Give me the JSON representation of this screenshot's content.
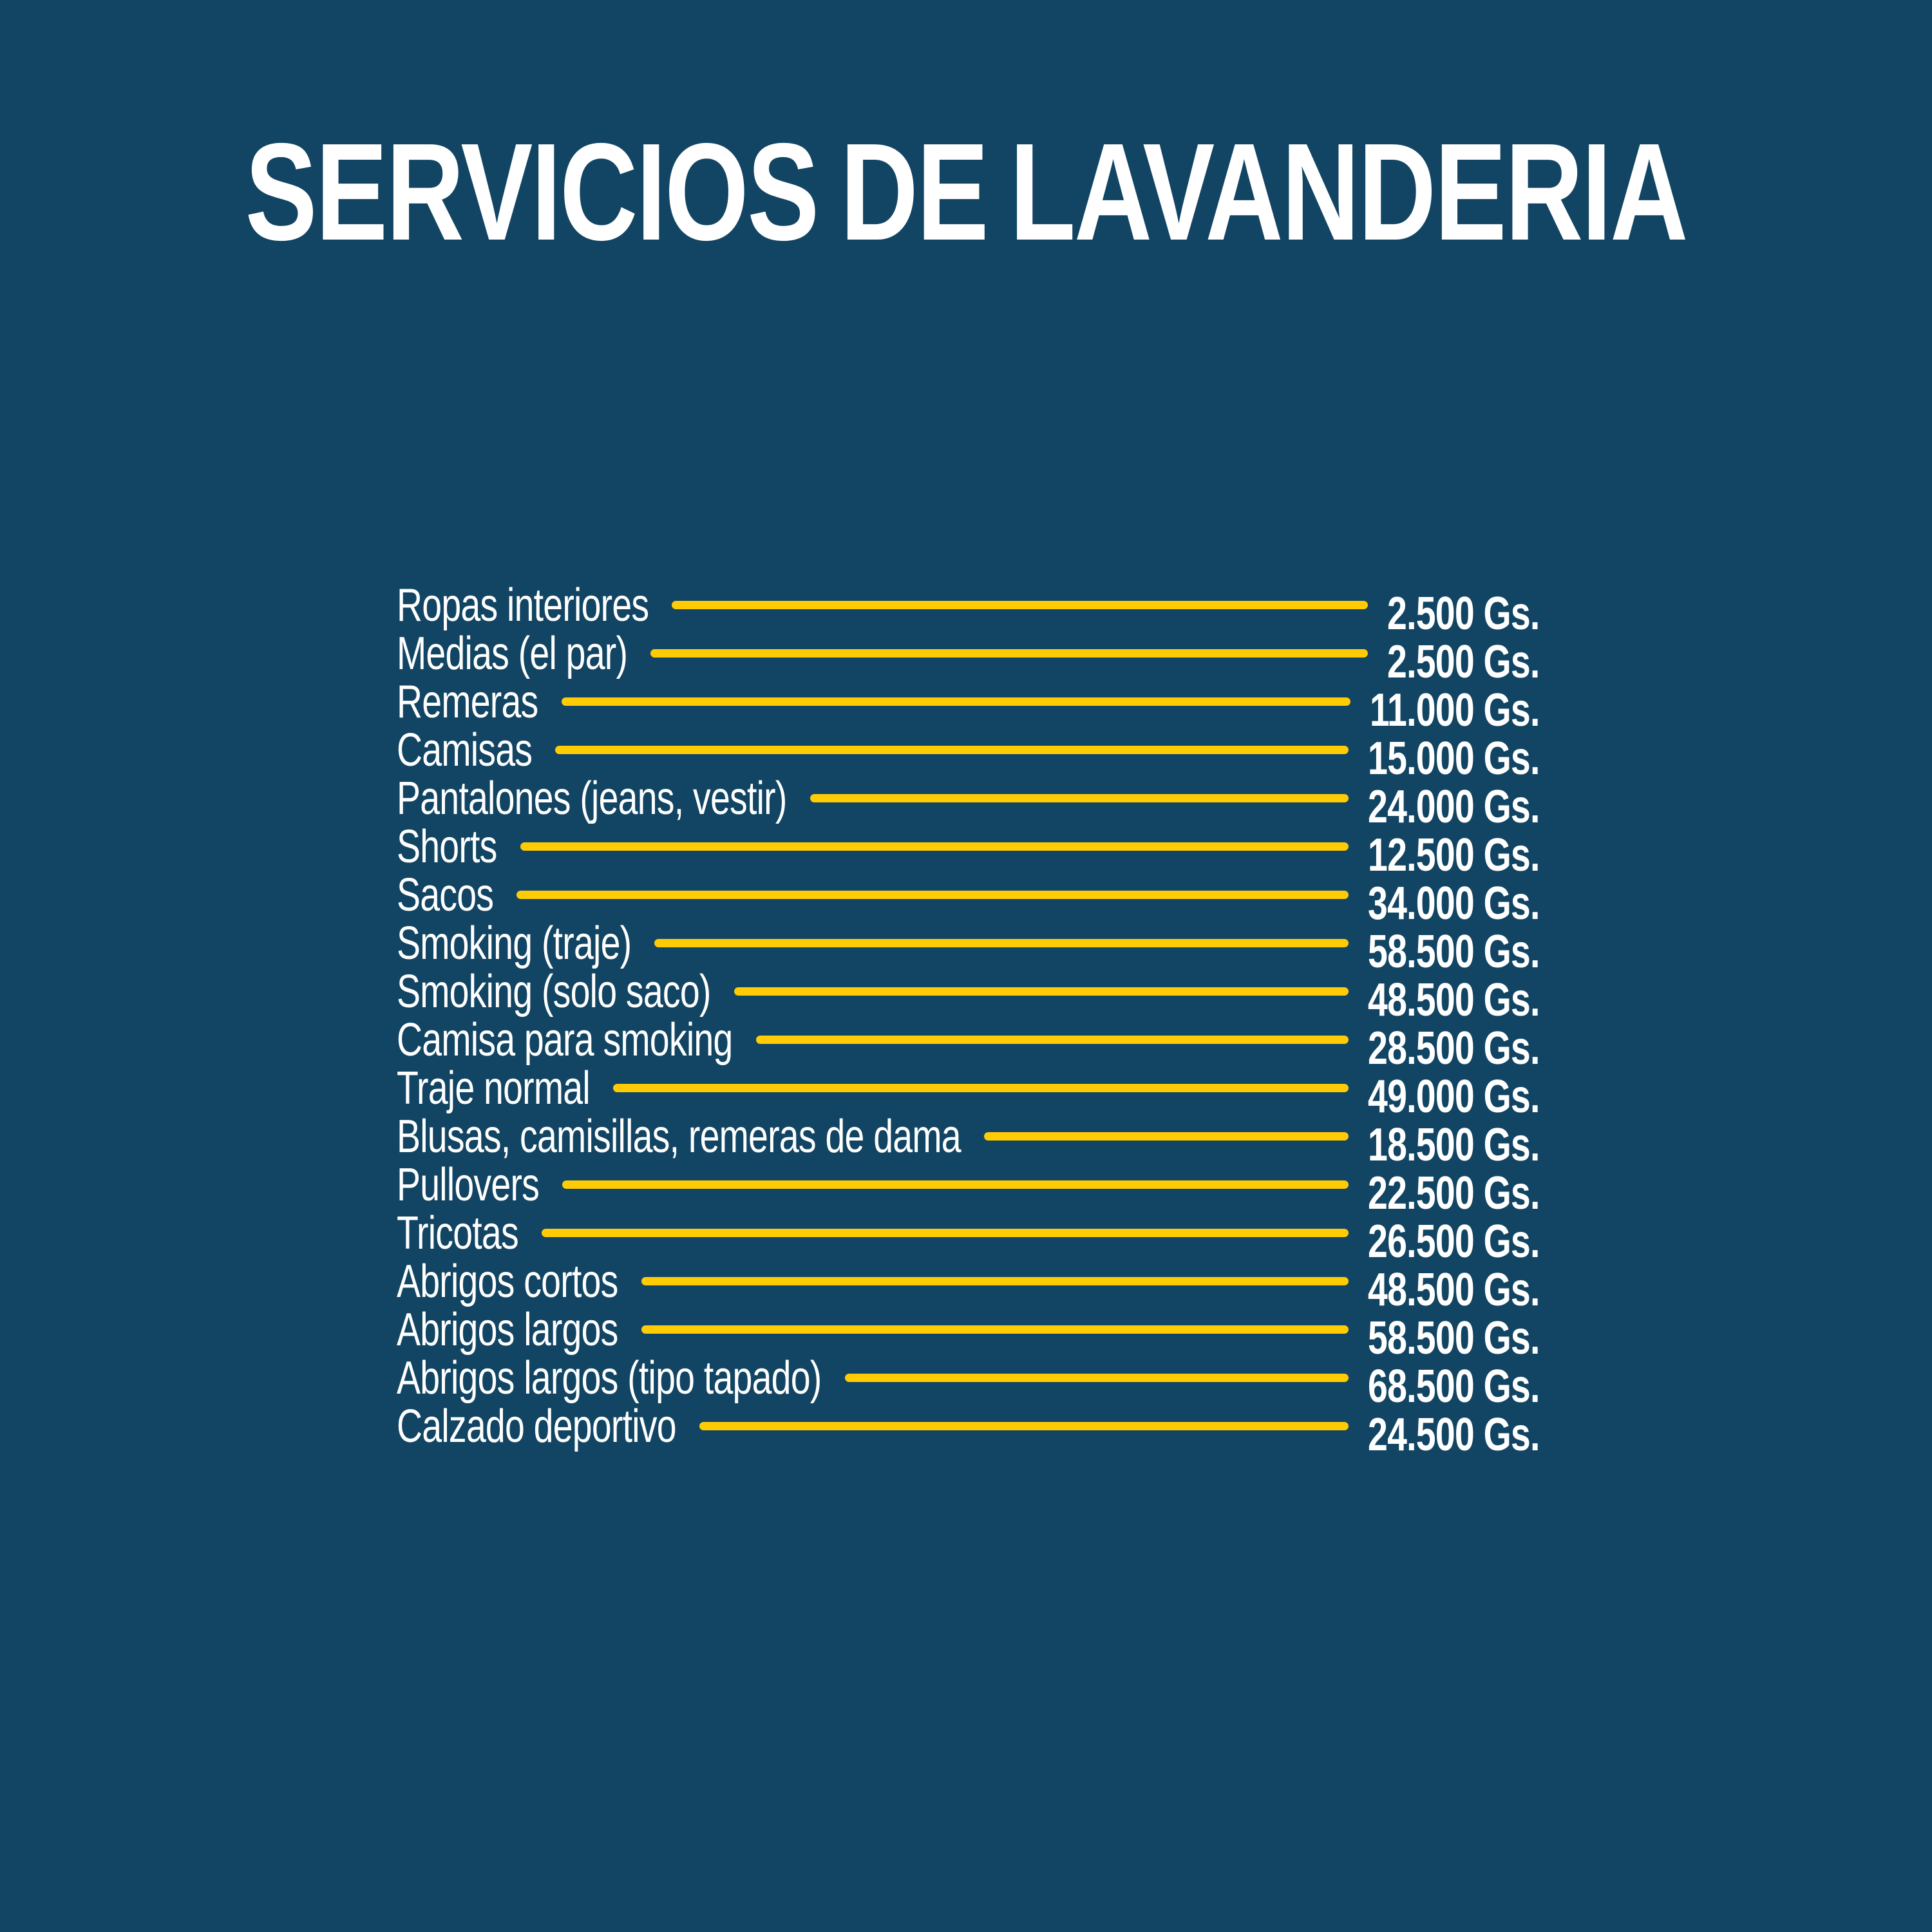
{
  "title": "SERVICIOS DE LAVANDERIA",
  "currency_suffix": "Gs.",
  "colors": {
    "background": "#124563",
    "accent_yellow": "#FFCB05",
    "text": "#FFFFFF"
  },
  "items": [
    {
      "label": "Ropas interiores",
      "price": "2.500 Gs."
    },
    {
      "label": "Medias (el par)",
      "price": "2.500 Gs."
    },
    {
      "label": "Remeras",
      "price": "11.000 Gs."
    },
    {
      "label": "Camisas",
      "price": "15.000 Gs."
    },
    {
      "label": "Pantalones (jeans, vestir)",
      "price": "24.000 Gs."
    },
    {
      "label": "Shorts",
      "price": "12.500 Gs."
    },
    {
      "label": "Sacos",
      "price": "34.000 Gs."
    },
    {
      "label": "Smoking (traje)",
      "price": "58.500 Gs."
    },
    {
      "label": "Smoking (solo saco)",
      "price": "48.500 Gs."
    },
    {
      "label": "Camisa para smoking",
      "price": "28.500 Gs."
    },
    {
      "label": "Traje normal",
      "price": "49.000 Gs."
    },
    {
      "label": "Blusas, camisillas, remeras de dama",
      "price": "18.500 Gs."
    },
    {
      "label": "Pullovers",
      "price": "22.500 Gs."
    },
    {
      "label": "Tricotas",
      "price": "26.500 Gs."
    },
    {
      "label": "Abrigos cortos",
      "price": "48.500 Gs."
    },
    {
      "label": "Abrigos largos",
      "price": "58.500 Gs."
    },
    {
      "label": "Abrigos largos (tipo tapado)",
      "price": "68.500 Gs."
    },
    {
      "label": "Calzado deportivo",
      "price": "24.500 Gs."
    }
  ]
}
